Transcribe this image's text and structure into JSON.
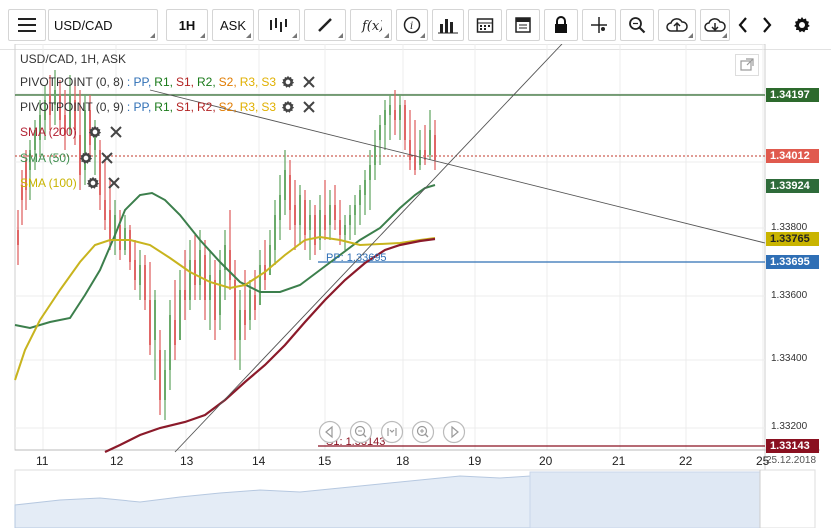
{
  "toolbar": {
    "symbol": "USD/CAD",
    "timeframe": "1H",
    "price_type": "ASK",
    "icons": [
      "menu-icon",
      "bar-chart-icon",
      "draw-line-icon",
      "function-icon",
      "info-icon",
      "volume-bars-icon",
      "calendar-icon",
      "template-icon",
      "lock-icon",
      "crosshair-icon",
      "zoom-icon",
      "cloud-upload-icon",
      "cloud-download-icon",
      "chevron-left-icon",
      "chevron-right-icon",
      "gear-icon"
    ]
  },
  "chart": {
    "header": "USD/CAD, 1H, ASK",
    "indicators": [
      {
        "label": "PIVOTPOINT (0, 8)",
        "name_color": "#333333",
        "fields": [
          {
            "text": ": PP,",
            "color": "#2f6fb5"
          },
          {
            "text": "R1,",
            "color": "#1a7a1a"
          },
          {
            "text": "S1,",
            "color": "#b22222"
          },
          {
            "text": "R2,",
            "color": "#1a7a1a"
          },
          {
            "text": "S2,",
            "color": "#e07b00"
          },
          {
            "text": "R3,",
            "color": "#e0b000"
          },
          {
            "text": "S3",
            "color": "#e0b000"
          }
        ]
      },
      {
        "label": "PIVOTPOINT (0, 9)",
        "name_color": "#333333",
        "fields": [
          {
            "text": ": PP,",
            "color": "#2f6fb5"
          },
          {
            "text": "R1,",
            "color": "#1a7a1a"
          },
          {
            "text": "S1,",
            "color": "#b22222"
          },
          {
            "text": "R2,",
            "color": "#b22222"
          },
          {
            "text": "S2,",
            "color": "#e07b00"
          },
          {
            "text": "R3,",
            "color": "#e0b000"
          },
          {
            "text": "S3",
            "color": "#e0b000"
          }
        ]
      },
      {
        "label": "SMA (200)",
        "name_color": "#b22234"
      },
      {
        "label": "SMA (50)",
        "name_color": "#3f8f4f"
      },
      {
        "label": "SMA (100)",
        "name_color": "#c8b400"
      }
    ],
    "pp_label": "PP: 1.33695",
    "s1_label": "S1: 1.33143",
    "y_ticks": [
      "1.33800",
      "1.33600",
      "1.33400",
      "1.33200"
    ],
    "x_ticks": [
      "11",
      "12",
      "13",
      "14",
      "15",
      "18",
      "19",
      "20",
      "21",
      "22",
      "25"
    ],
    "date_label": "25.12.2018",
    "price_tags": [
      {
        "value": "1.34197",
        "color": "#2d6a2d"
      },
      {
        "value": "1.34012",
        "color": "#e05a4e"
      },
      {
        "value": "1.33924",
        "color": "#2e6b3a"
      },
      {
        "value": "1.33765",
        "color": "#c9b400"
      },
      {
        "value": "1.33695",
        "color": "#2f6fb5"
      },
      {
        "value": "1.33143",
        "color": "#8a1020"
      }
    ],
    "colors": {
      "bull": "#6aaa6a",
      "bear": "#e06666",
      "sma50": "#3c7f4c",
      "sma100": "#c8b41e",
      "sma200": "#8b1a2a",
      "r1_line": "#2d6a2d",
      "pp_line": "#2f6fb5",
      "s1_line": "#8a1020",
      "current_line": "#c0392b"
    }
  }
}
